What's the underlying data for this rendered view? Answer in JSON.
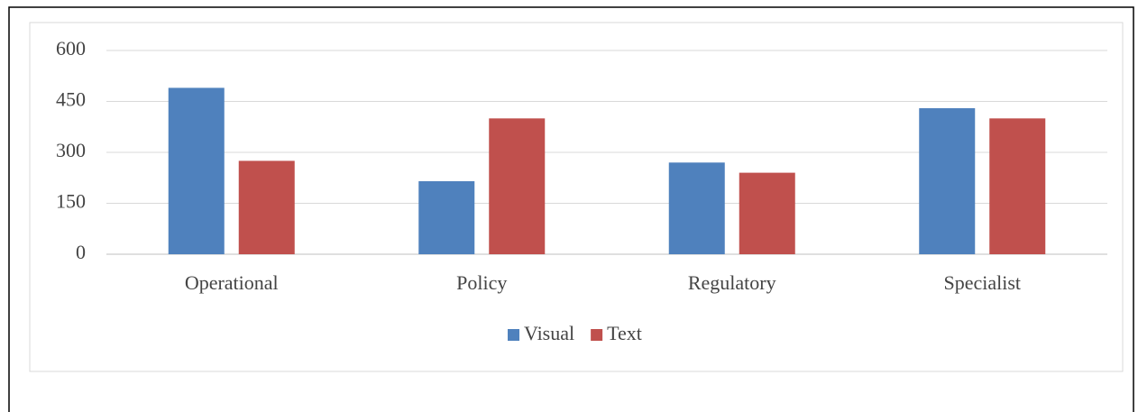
{
  "chart_data": {
    "type": "bar",
    "categories": [
      "Operational",
      "Policy",
      "Regulatory",
      "Specialist"
    ],
    "series": [
      {
        "name": "Visual",
        "color": "#4f81bd",
        "values": [
          490,
          215,
          270,
          430
        ]
      },
      {
        "name": "Text",
        "color": "#c0504d",
        "values": [
          275,
          400,
          240,
          400
        ]
      }
    ],
    "ylim": [
      0,
      600
    ],
    "yticks": [
      0,
      150,
      300,
      450,
      600
    ],
    "grid": true,
    "legend": "bottom"
  }
}
